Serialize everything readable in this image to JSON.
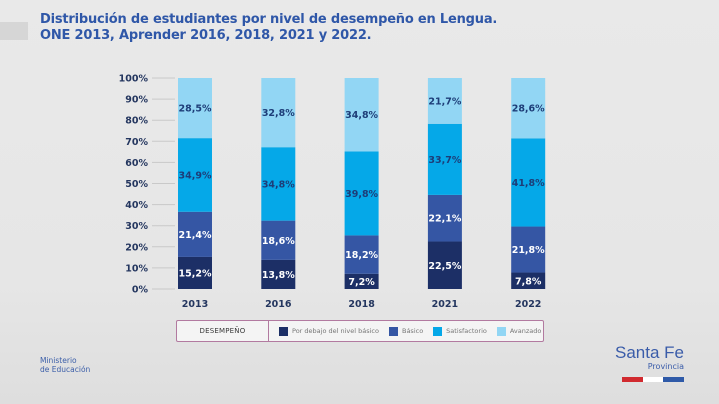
{
  "title": {
    "line1": "Distribución de estudiantes por nivel de desempeño en Lengua.",
    "line2": "ONE 2013, Aprender 2016, 2018, 2021 y 2022."
  },
  "chart_data": {
    "type": "bar",
    "stacked": true,
    "title": "Distribución de estudiantes por nivel de desempeño en Lengua. ONE 2013, Aprender 2016, 2018, 2021 y 2022.",
    "xlabel": "",
    "ylabel": "",
    "ylim": [
      0,
      100
    ],
    "y_ticks": [
      "0%",
      "10%",
      "20%",
      "30%",
      "40%",
      "50%",
      "60%",
      "70%",
      "80%",
      "90%",
      "100%"
    ],
    "grid": true,
    "legend_position": "bottom",
    "categories": [
      "2013",
      "2016",
      "2018",
      "2021",
      "2022"
    ],
    "series": [
      {
        "name": "Por debajo del nivel básico",
        "color": "#1c2f66",
        "label_color": "#ffffff",
        "values": [
          15.2,
          13.8,
          7.2,
          22.5,
          7.8
        ],
        "labels": [
          "15,2%",
          "13,8%",
          "7,2%",
          "22,5%",
          "7,8%"
        ]
      },
      {
        "name": "Básico",
        "color": "#3556a4",
        "label_color": "#ffffff",
        "values": [
          21.4,
          18.6,
          18.2,
          22.1,
          21.8
        ],
        "labels": [
          "21,4%",
          "18,6%",
          "18,2%",
          "22,1%",
          "21,8%"
        ]
      },
      {
        "name": "Satisfactorio",
        "color": "#05a8e8",
        "label_color": "#1d3d78",
        "values": [
          34.9,
          34.8,
          39.8,
          33.7,
          41.8
        ],
        "labels": [
          "34,9%",
          "34,8%",
          "39,8%",
          "33,7%",
          "41,8%"
        ]
      },
      {
        "name": "Avanzado",
        "color": "#92d6f4",
        "label_color": "#1d3d78",
        "values": [
          28.5,
          32.8,
          34.8,
          21.7,
          28.6
        ],
        "labels": [
          "28,5%",
          "32,8%",
          "34,8%",
          "21,7%",
          "28,6%"
        ]
      }
    ]
  },
  "legend": {
    "title": "DESEMPEÑO",
    "items": [
      {
        "label": "Por debajo del nivel básico",
        "color": "#1c2f66"
      },
      {
        "label": "Básico",
        "color": "#3556a4"
      },
      {
        "label": "Satisfactorio",
        "color": "#05a8e8"
      },
      {
        "label": "Avanzado",
        "color": "#92d6f4"
      }
    ]
  },
  "footer": {
    "ministry_line1": "Ministerio",
    "ministry_line2": "de Educación",
    "logo_name": "Santa Fe",
    "logo_sub": "Provincia",
    "flag_colors": [
      "#d12a2f",
      "#ffffff",
      "#2f5aa8"
    ]
  }
}
